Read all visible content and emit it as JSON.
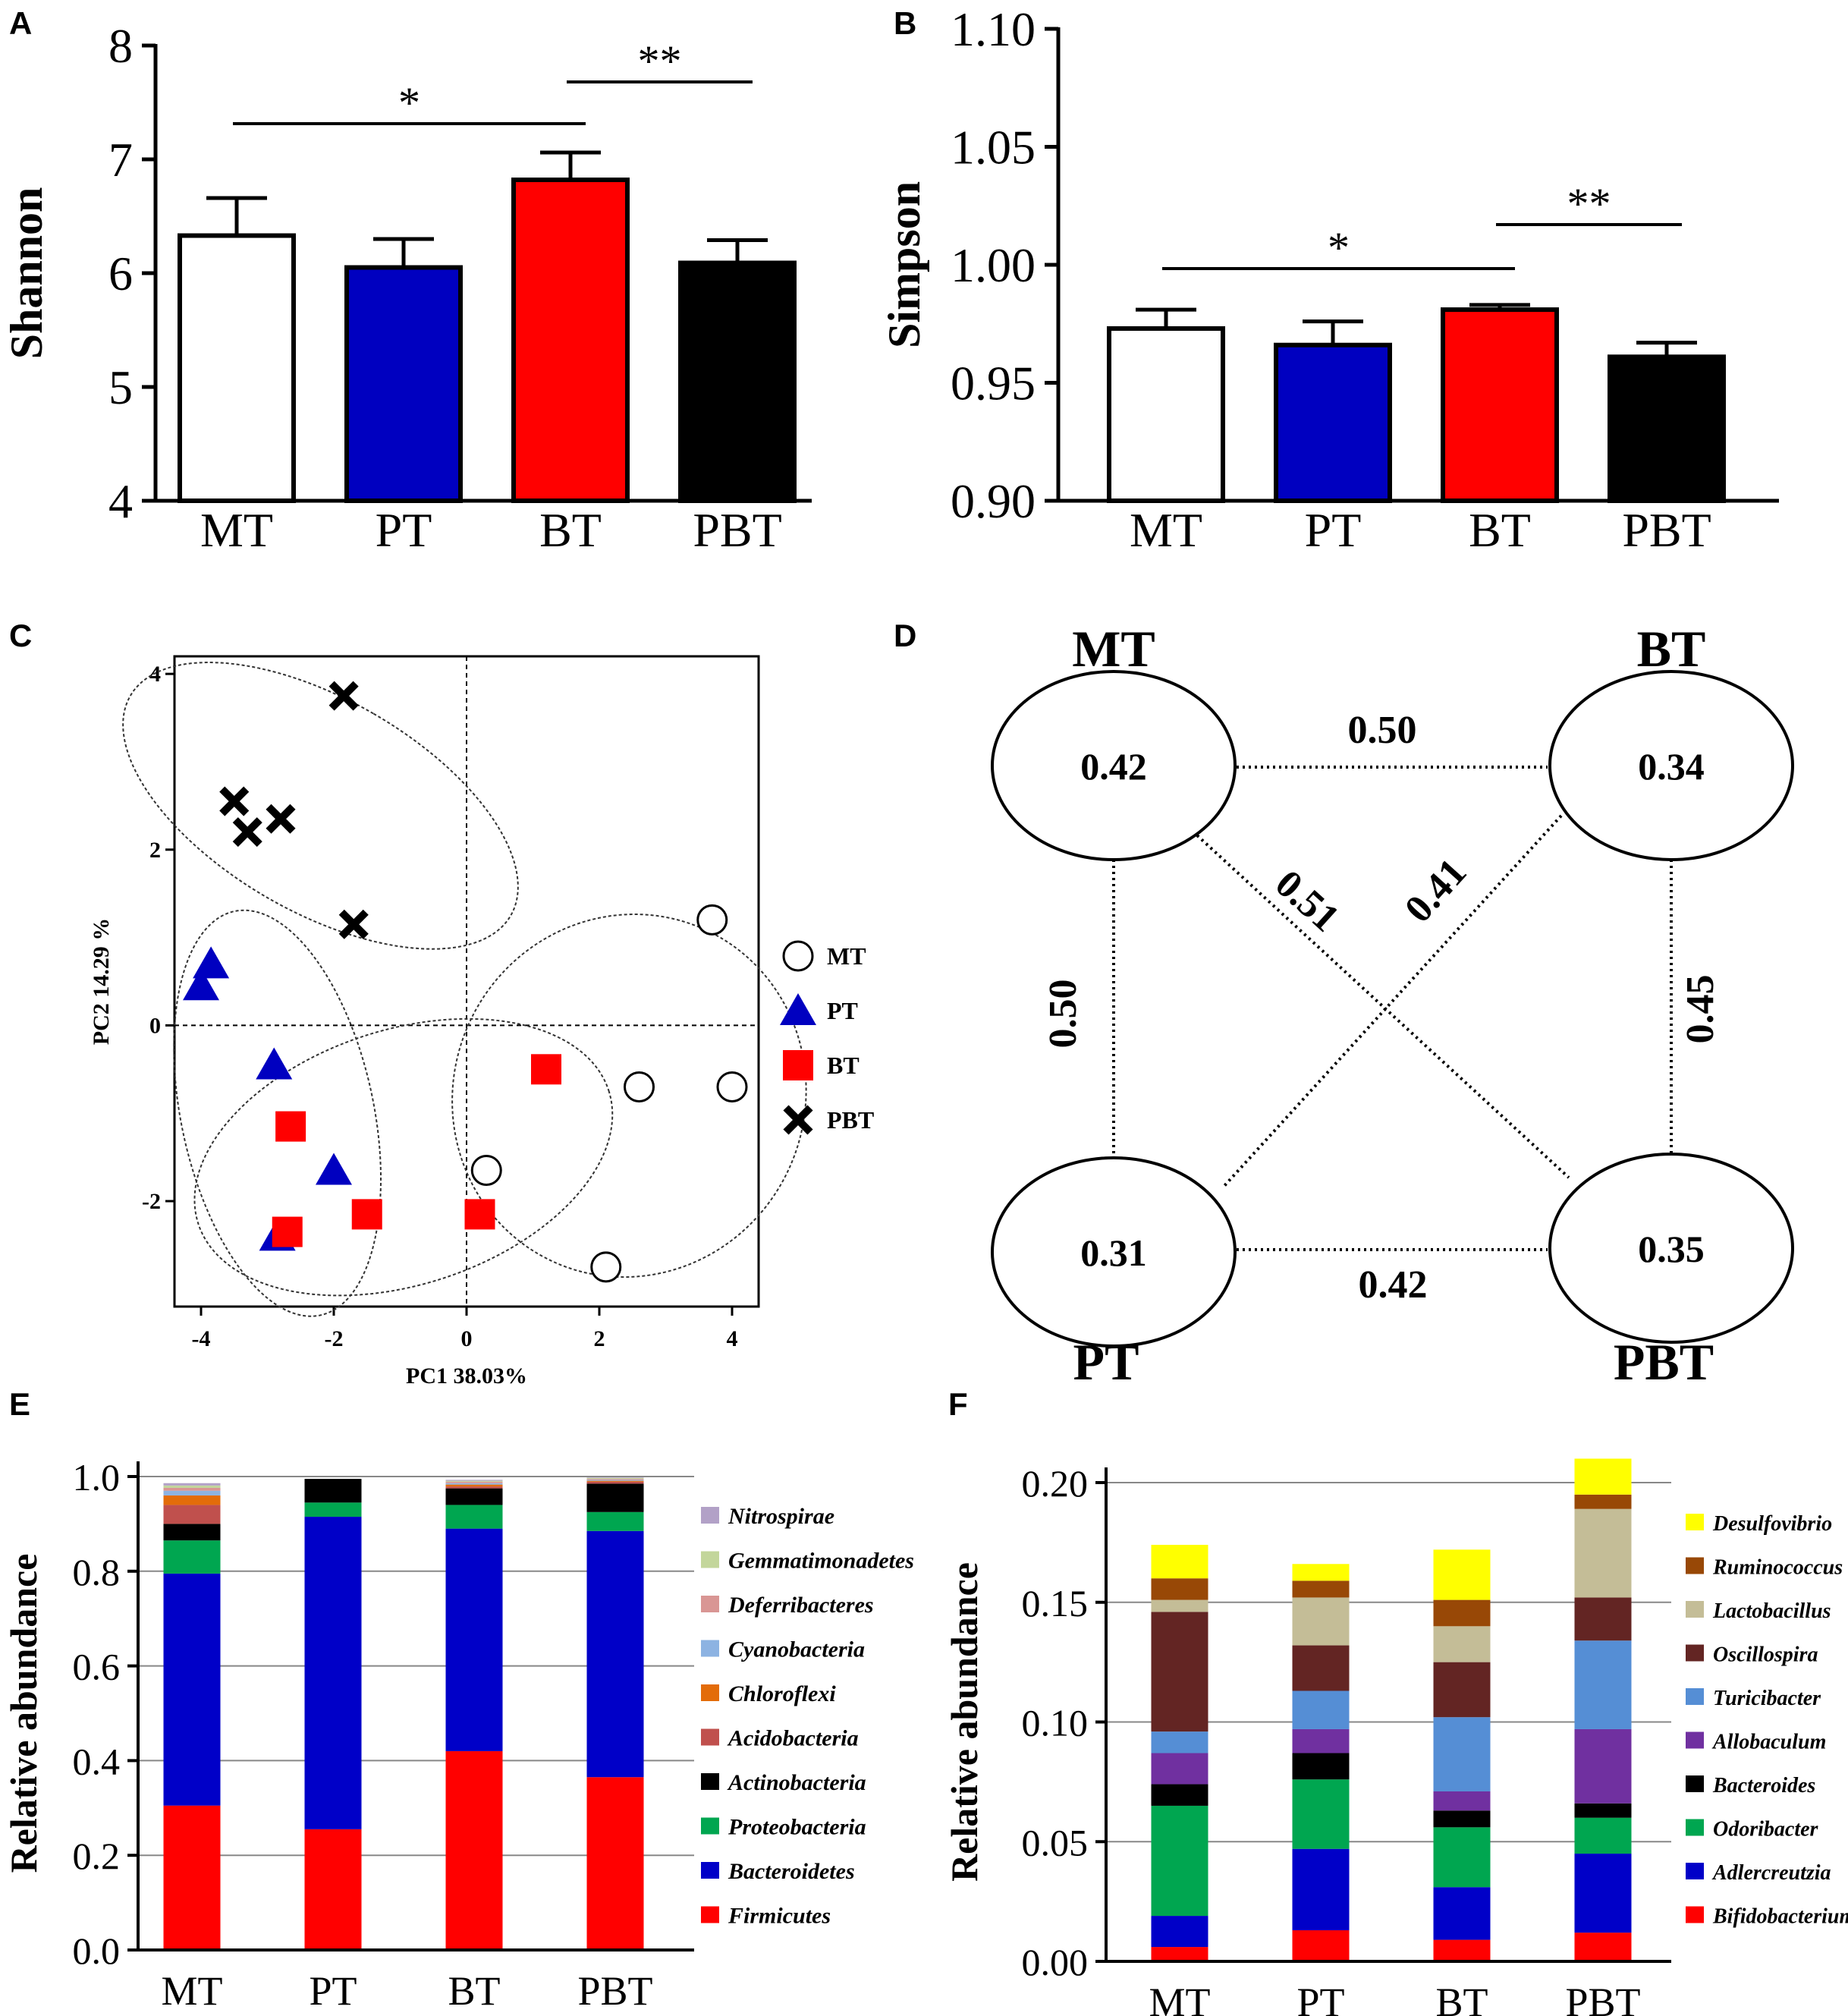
{
  "panel_letters": [
    "A",
    "B",
    "C",
    "D",
    "E",
    "F"
  ],
  "chart_data": [
    {
      "id": "A",
      "type": "bar",
      "ylabel": "Shannon",
      "categories": [
        "MT",
        "PT",
        "BT",
        "PBT"
      ],
      "values": [
        6.33,
        6.05,
        6.82,
        6.09
      ],
      "errors": [
        0.33,
        0.25,
        0.24,
        0.2
      ],
      "colors": [
        "#ffffff",
        "#0000c0",
        "#ff0000",
        "#000000"
      ],
      "ylim": [
        4,
        8
      ],
      "yticks": [
        "4",
        "5",
        "6",
        "7",
        "8"
      ],
      "significance": [
        {
          "from": 0,
          "to": 2,
          "label": "*"
        },
        {
          "from": 2,
          "to": 3,
          "label": "**"
        }
      ]
    },
    {
      "id": "B",
      "type": "bar",
      "ylabel": "Simpson",
      "categories": [
        "MT",
        "PT",
        "BT",
        "PBT"
      ],
      "values": [
        0.973,
        0.966,
        0.981,
        0.961
      ],
      "errors": [
        0.008,
        0.01,
        0.002,
        0.006
      ],
      "colors": [
        "#ffffff",
        "#0000c0",
        "#ff0000",
        "#000000"
      ],
      "ylim": [
        0.9,
        1.1
      ],
      "yticks": [
        "0.90",
        "0.95",
        "1.00",
        "1.05",
        "1.10"
      ],
      "significance": [
        {
          "from": 0,
          "to": 2,
          "label": "*"
        },
        {
          "from": 2,
          "to": 3,
          "label": "**"
        }
      ]
    },
    {
      "id": "C",
      "type": "scatter",
      "xlabel": "PC1 38.03%",
      "ylabel": "PC2  14.29 %",
      "xlim": [
        -4.4,
        4.4
      ],
      "ylim": [
        -3.2,
        4.2
      ],
      "xticks": [
        "-4",
        "-2",
        "0",
        "2",
        "4"
      ],
      "yticks": [
        "-2",
        "0",
        "2",
        "4"
      ],
      "series": [
        {
          "name": "MT",
          "marker": "circle",
          "color": "#000000",
          "points": [
            [
              3.7,
              1.2
            ],
            [
              2.6,
              -0.7
            ],
            [
              4.0,
              -0.7
            ],
            [
              0.3,
              -1.65
            ],
            [
              2.1,
              -2.75
            ]
          ]
        },
        {
          "name": "PT",
          "marker": "triangle",
          "color": "#0000c0",
          "points": [
            [
              -3.85,
              0.7
            ],
            [
              -4.0,
              0.45
            ],
            [
              -2.9,
              -0.45
            ],
            [
              -2.0,
              -1.65
            ],
            [
              -2.85,
              -2.4
            ]
          ]
        },
        {
          "name": "BT",
          "marker": "square",
          "color": "#ff0000",
          "points": [
            [
              1.2,
              -0.5
            ],
            [
              -2.65,
              -1.15
            ],
            [
              -1.5,
              -2.15
            ],
            [
              0.2,
              -2.15
            ],
            [
              -2.7,
              -2.35
            ]
          ]
        },
        {
          "name": "PBT",
          "marker": "cross",
          "color": "#000000",
          "points": [
            [
              -1.85,
              3.75
            ],
            [
              -3.5,
              2.55
            ],
            [
              -2.8,
              2.35
            ],
            [
              -3.3,
              2.2
            ],
            [
              -1.7,
              1.15
            ]
          ]
        }
      ],
      "ellipses": [
        {
          "cx": -2.2,
          "cy": 2.5,
          "rx": 1.6,
          "ry": 2.5,
          "angle_deg": 60
        },
        {
          "cx": -2.85,
          "cy": -1.0,
          "rx": 1.45,
          "ry": 2.35,
          "angle_deg": 12
        },
        {
          "cx": -0.95,
          "cy": -1.5,
          "rx": 3.25,
          "ry": 1.45,
          "angle_deg": 18
        },
        {
          "cx": 2.45,
          "cy": -0.8,
          "rx": 2.75,
          "ry": 2.0,
          "angle_deg": 65
        }
      ]
    },
    {
      "id": "D",
      "type": "network",
      "nodes": [
        {
          "name": "MT",
          "value": "0.42"
        },
        {
          "name": "BT",
          "value": "0.34"
        },
        {
          "name": "PT",
          "value": "0.31"
        },
        {
          "name": "PBT",
          "value": "0.35"
        }
      ],
      "edges": [
        {
          "from": "MT",
          "to": "BT",
          "value": "0.50"
        },
        {
          "from": "MT",
          "to": "PT",
          "value": "0.50"
        },
        {
          "from": "MT",
          "to": "PBT",
          "value": "0.51"
        },
        {
          "from": "BT",
          "to": "PT",
          "value": "0.41"
        },
        {
          "from": "BT",
          "to": "PBT",
          "value": "0.45"
        },
        {
          "from": "PT",
          "to": "PBT",
          "value": "0.42"
        }
      ]
    },
    {
      "id": "E",
      "type": "bar",
      "stacked": true,
      "ylabel": "Relative abundance",
      "categories": [
        "MT",
        "PT",
        "BT",
        "PBT"
      ],
      "ylim": [
        0,
        1
      ],
      "yticks": [
        "0.0",
        "0.2",
        "0.4",
        "0.6",
        "0.8",
        "1.0"
      ],
      "series": [
        {
          "name": "Firmicutes",
          "color": "#ff0000",
          "values": [
            0.305,
            0.255,
            0.42,
            0.365
          ]
        },
        {
          "name": "Bacteroidetes",
          "color": "#0000c8",
          "values": [
            0.49,
            0.66,
            0.47,
            0.52
          ]
        },
        {
          "name": "Proteobacteria",
          "color": "#00a650",
          "values": [
            0.07,
            0.03,
            0.05,
            0.04
          ]
        },
        {
          "name": "Actinobacteria",
          "color": "#000000",
          "values": [
            0.035,
            0.05,
            0.035,
            0.06
          ]
        },
        {
          "name": "Acidobacteria",
          "color": "#c0504d",
          "values": [
            0.04,
            0.0,
            0.004,
            0.004
          ]
        },
        {
          "name": "Chloroflexi",
          "color": "#e36c09",
          "values": [
            0.02,
            0.0,
            0.004,
            0.002
          ]
        },
        {
          "name": "Cyanobacteria",
          "color": "#8db3e2",
          "values": [
            0.01,
            0.0,
            0.003,
            0.002
          ]
        },
        {
          "name": "Deferribacteres",
          "color": "#d99694",
          "values": [
            0.006,
            0.0,
            0.003,
            0.002
          ]
        },
        {
          "name": "Gemmatimonadetes",
          "color": "#c3d69b",
          "values": [
            0.005,
            0.0,
            0.002,
            0.002
          ]
        },
        {
          "name": "Nitrospirae",
          "color": "#b2a1c7",
          "values": [
            0.005,
            0.0,
            0.002,
            0.001
          ]
        }
      ]
    },
    {
      "id": "F",
      "type": "bar",
      "stacked": true,
      "ylabel": "Relative abundance",
      "categories": [
        "MT",
        "PT",
        "BT",
        "PBT"
      ],
      "ylim": [
        0,
        0.2
      ],
      "yticks": [
        "0.00",
        "0.05",
        "0.10",
        "0.15",
        "0.20"
      ],
      "series": [
        {
          "name": "Bifidobacterium",
          "color": "#ff0000",
          "values": [
            0.006,
            0.013,
            0.009,
            0.012
          ]
        },
        {
          "name": "Adlercreutzia",
          "color": "#0000c8",
          "values": [
            0.013,
            0.034,
            0.022,
            0.033
          ]
        },
        {
          "name": "Odoribacter",
          "color": "#00a650",
          "values": [
            0.046,
            0.029,
            0.025,
            0.015
          ]
        },
        {
          "name": "Bacteroides",
          "color": "#000000",
          "values": [
            0.009,
            0.011,
            0.007,
            0.006
          ]
        },
        {
          "name": "Allobaculum",
          "color": "#7030a0",
          "values": [
            0.013,
            0.01,
            0.008,
            0.031
          ]
        },
        {
          "name": "Turicibacter",
          "color": "#558ed5",
          "values": [
            0.009,
            0.016,
            0.031,
            0.037
          ]
        },
        {
          "name": "Oscillospira",
          "color": "#632523",
          "values": [
            0.05,
            0.019,
            0.023,
            0.018
          ]
        },
        {
          "name": "Lactobacillus",
          "color": "#c4bd97",
          "values": [
            0.005,
            0.02,
            0.015,
            0.037
          ]
        },
        {
          "name": "Ruminococcus",
          "color": "#984806",
          "values": [
            0.009,
            0.007,
            0.011,
            0.006
          ]
        },
        {
          "name": "Desulfovibrio",
          "color": "#ffff00",
          "values": [
            0.014,
            0.007,
            0.021,
            0.015
          ]
        }
      ]
    }
  ]
}
